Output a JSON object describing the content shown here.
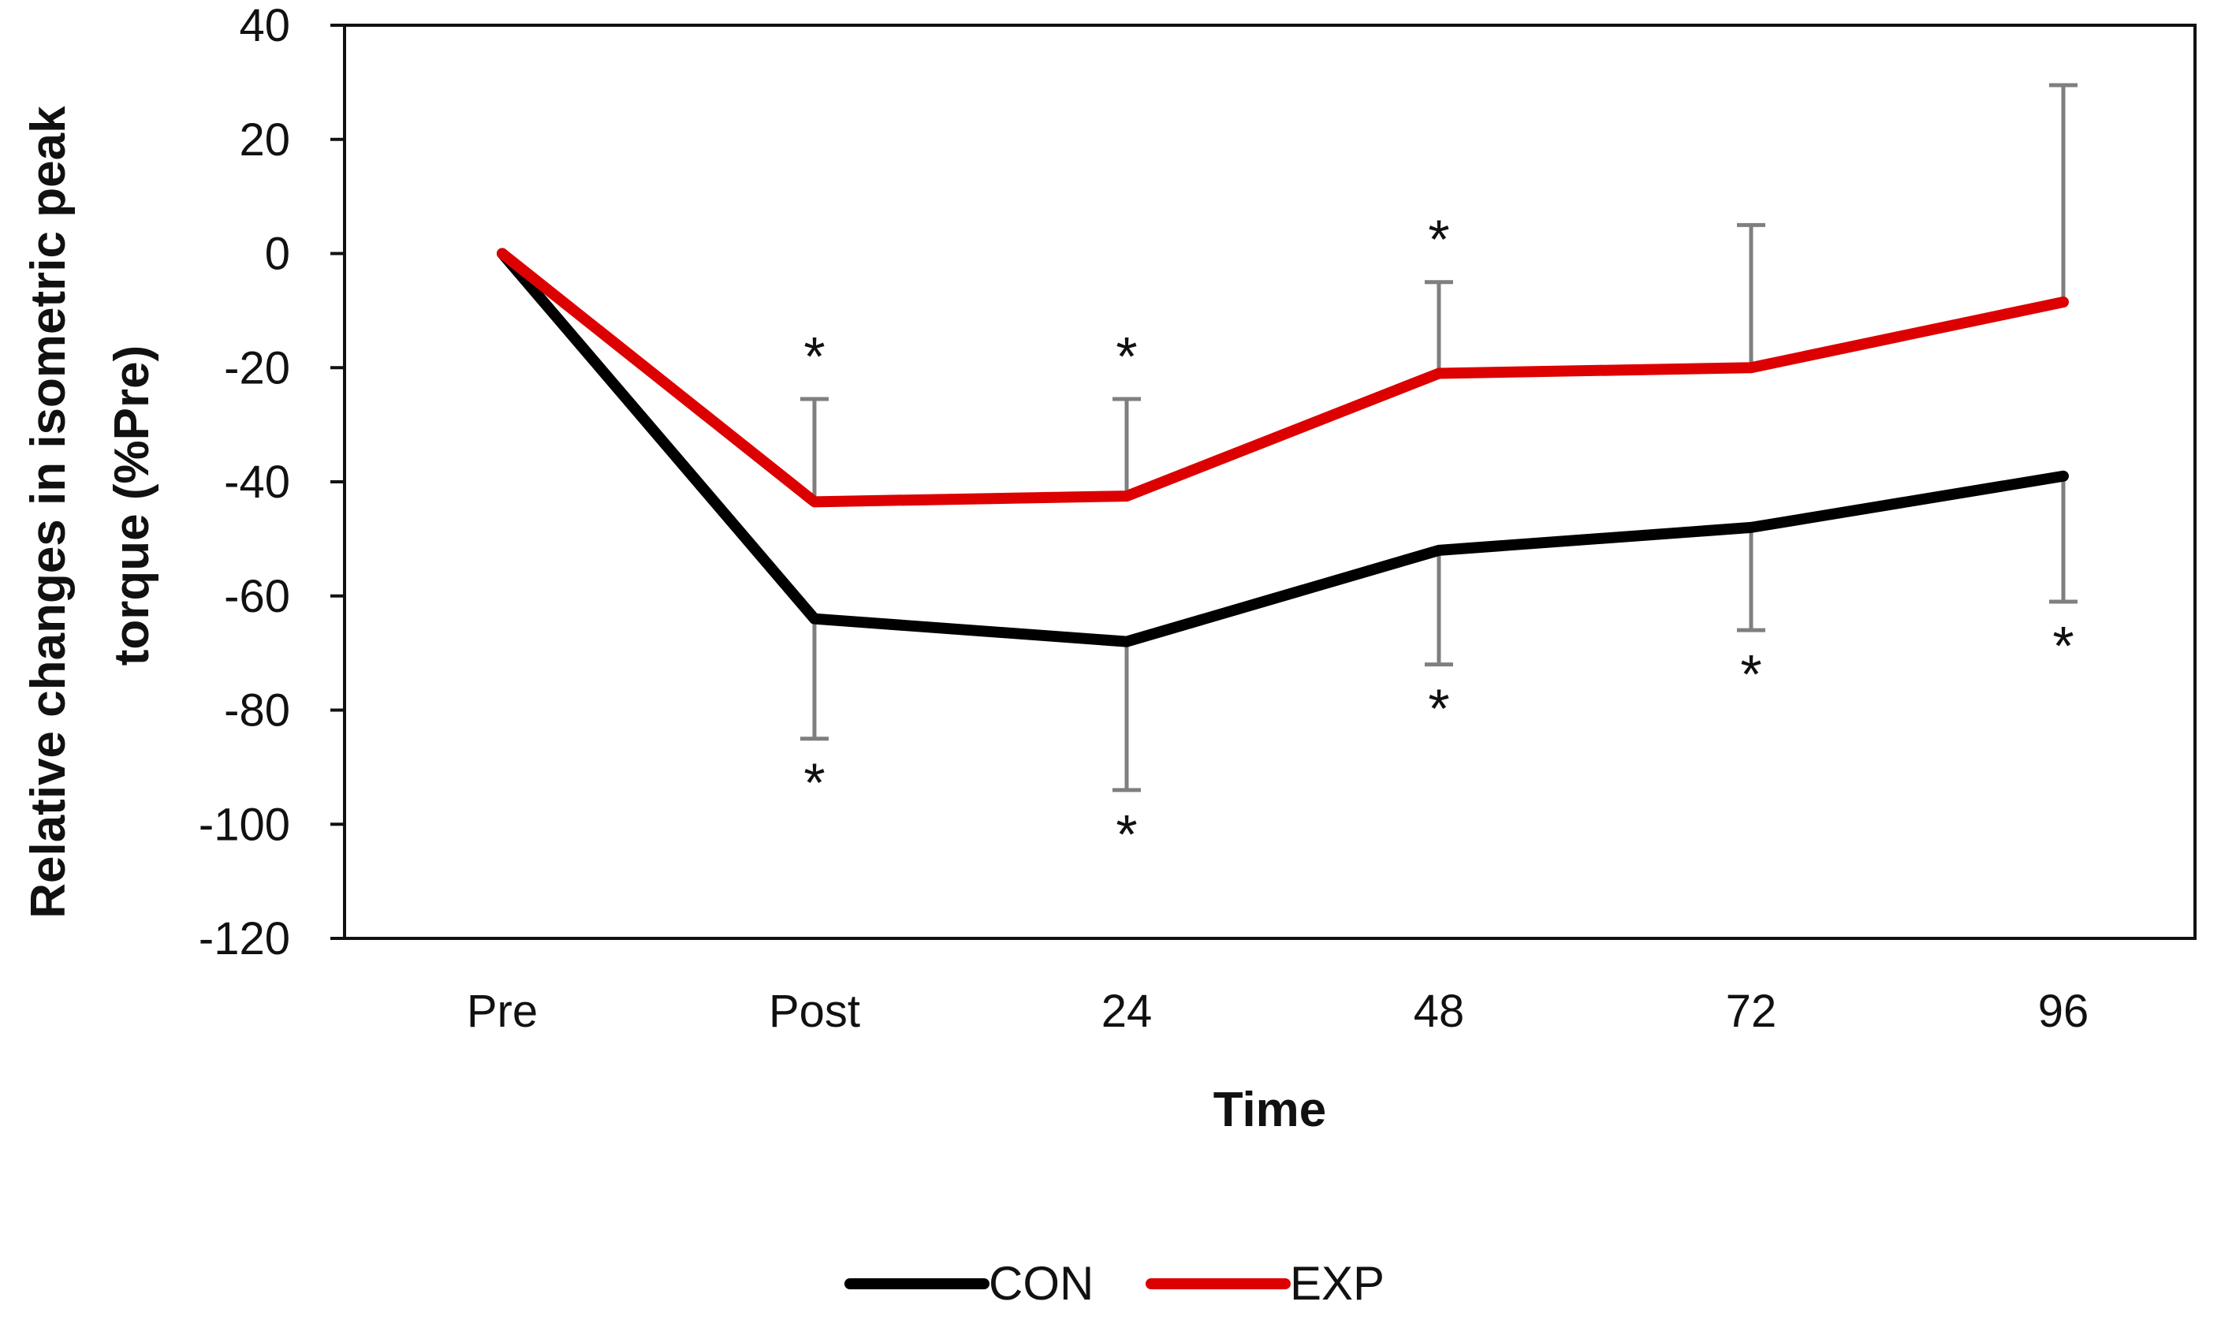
{
  "chart_data": {
    "type": "line",
    "title": "",
    "xlabel": "Time",
    "ylabel_lines": [
      "Relative changes in isometric peak",
      "torque (%Pre)"
    ],
    "categories": [
      "Pre",
      "Post",
      "24",
      "48",
      "72",
      "96"
    ],
    "ylim": [
      -120,
      40
    ],
    "yticks": [
      40,
      20,
      0,
      -20,
      -40,
      -60,
      -80,
      -100,
      -120
    ],
    "ytick_labels": [
      "40",
      "20",
      "0",
      "-20",
      "-40",
      "-60",
      "-80",
      "-100",
      "-120"
    ],
    "grid": false,
    "legend_position": "bottom-center",
    "series": [
      {
        "name": "CON",
        "color": "#000000",
        "values": [
          0,
          -64,
          -68,
          -52,
          -48,
          -39
        ],
        "error": [
          0,
          21,
          26,
          20,
          18,
          22
        ],
        "error_direction": "down",
        "significance": [
          "",
          "*",
          "*",
          "*",
          "*",
          "*"
        ]
      },
      {
        "name": "EXP",
        "color": "#dd0000",
        "values": [
          0,
          -43.5,
          -42.5,
          -21,
          -20,
          -8.5
        ],
        "error": [
          0,
          18,
          17,
          16,
          25,
          38
        ],
        "error_direction": "up",
        "significance": [
          "",
          "*",
          "*",
          "*",
          "",
          ""
        ]
      }
    ],
    "error_bar_color": "#7f7f7f"
  }
}
